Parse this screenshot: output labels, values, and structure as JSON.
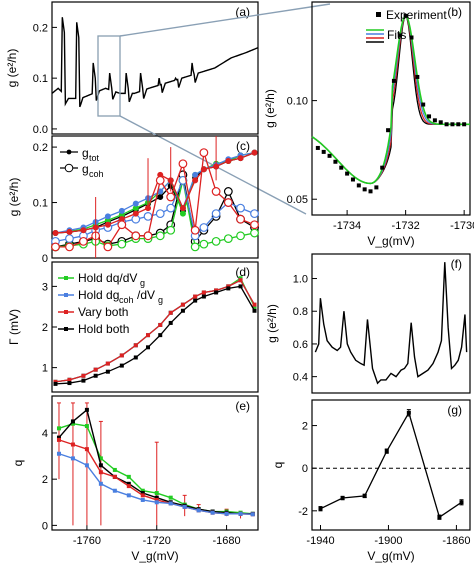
{
  "chart_data": [
    {
      "panel": "a",
      "panel_label": "(a)",
      "type": "line",
      "ylabel": "g (e²/h)",
      "yticks": [
        "0.0",
        "0.1",
        "0.2"
      ],
      "ylim": [
        -0.01,
        0.25
      ],
      "xlim": [
        0,
        1
      ],
      "series": [
        {
          "x": [
            0,
            0.03,
            0.08,
            0.14,
            0.2,
            0.26,
            0.33,
            0.4,
            0.47,
            0.55,
            0.63,
            0.71,
            0.79,
            0.87,
            0.94,
            1.0
          ],
          "y": [
            0.07,
            0.08,
            0.06,
            0.06,
            0.07,
            0.08,
            0.07,
            0.07,
            0.08,
            0.09,
            0.1,
            0.11,
            0.12,
            0.14,
            0.15,
            0.16
          ],
          "peaks": [
            0.05,
            0.12,
            0.2,
            0.28,
            0.36,
            0.43,
            0.52,
            0.6,
            0.68
          ],
          "peak_h": [
            0.22,
            0.21,
            0.13,
            0.11,
            0.11,
            0.11,
            0.1,
            0.1,
            0.13
          ]
        }
      ]
    },
    {
      "panel": "b",
      "panel_label": "(b)",
      "type": "line",
      "xlabel": "V_g(mV)",
      "ylabel": "g (e²/h)",
      "xlim": [
        -1735.2,
        -1729.8
      ],
      "ylim": [
        0.042,
        0.15
      ],
      "xticks": [
        "-1734",
        "-1732",
        "-1730"
      ],
      "xtick_vals": [
        -1734,
        -1732,
        -1730
      ],
      "yticks": [
        "0.05",
        "0.10"
      ],
      "ytick_vals": [
        0.05,
        0.1
      ],
      "legend": [
        "Experiment",
        "Fits"
      ],
      "legend_position": "top-right",
      "colors": {
        "experiment": "#000000",
        "fit_green": "#22cc22",
        "fit_blue": "#4a7fe0",
        "fit_red": "#dd2222",
        "fit_black": "#000000"
      },
      "experiment_x": [
        -1735,
        -1734.8,
        -1734.6,
        -1734.4,
        -1734.2,
        -1734,
        -1733.8,
        -1733.6,
        -1733.4,
        -1733.2,
        -1733,
        -1732.8,
        -1732.6,
        -1732.4,
        -1732.2,
        -1732,
        -1731.8,
        -1731.6,
        -1731.4,
        -1731.2,
        -1731,
        -1730.8,
        -1730.6,
        -1730.4,
        -1730.2,
        -1730
      ],
      "experiment_y": [
        0.076,
        0.074,
        0.072,
        0.069,
        0.066,
        0.063,
        0.06,
        0.057,
        0.055,
        0.054,
        0.056,
        0.066,
        0.085,
        0.11,
        0.133,
        0.143,
        0.132,
        0.112,
        0.098,
        0.092,
        0.09,
        0.089,
        0.088,
        0.088,
        0.088,
        0.088
      ]
    },
    {
      "panel": "c",
      "panel_label": "(c)",
      "type": "line",
      "ylabel": "g (e²/h)",
      "ylim": [
        0,
        0.22
      ],
      "yticks": [
        "0",
        "0.1",
        "0.2"
      ],
      "ytick_vals": [
        0,
        0.1,
        0.2
      ],
      "legend": [
        "g_tot",
        "g_coh"
      ],
      "legend_position": "top-left",
      "x": [
        -1778,
        -1770,
        -1762,
        -1755,
        -1748,
        -1740,
        -1732,
        -1725,
        -1718,
        -1712,
        -1705,
        -1698,
        -1693,
        -1686,
        -1679,
        -1672,
        -1664
      ],
      "series": [
        {
          "name": "g_tot",
          "color": "#000000",
          "values": [
            0.045,
            0.047,
            0.05,
            0.055,
            0.065,
            0.075,
            0.087,
            0.098,
            0.11,
            0.13,
            0.085,
            0.145,
            0.16,
            0.165,
            0.175,
            0.18,
            0.19
          ]
        },
        {
          "name": "g_coh",
          "color": "#000000",
          "hollow": true,
          "values": [
            0.02,
            0.025,
            0.03,
            0.035,
            0.025,
            0.03,
            0.04,
            0.04,
            0.045,
            0.06,
            0.15,
            0.03,
            0.05,
            0.075,
            0.12,
            0.07,
            0.055
          ]
        },
        {
          "name": "green",
          "color": "#22cc22",
          "values": [
            0.045,
            0.048,
            0.052,
            0.06,
            0.068,
            0.078,
            0.09,
            0.1,
            0.12,
            0.14,
            0.08,
            0.15,
            0.16,
            0.17,
            0.175,
            0.185,
            0.19
          ]
        },
        {
          "name": "green_hollow",
          "color": "#22cc22",
          "hollow": true,
          "values": [
            0.02,
            0.022,
            0.025,
            0.03,
            0.022,
            0.025,
            0.035,
            0.035,
            0.04,
            0.05,
            0.14,
            0.02,
            0.025,
            0.03,
            0.035,
            0.04,
            0.045
          ]
        },
        {
          "name": "blue",
          "color": "#4a7fe0",
          "values": [
            0.045,
            0.05,
            0.055,
            0.065,
            0.075,
            0.085,
            0.098,
            0.108,
            0.12,
            0.14,
            0.09,
            0.15,
            0.16,
            0.168,
            0.178,
            0.185,
            0.19
          ]
        },
        {
          "name": "blue_hollow",
          "color": "#4a7fe0",
          "hollow": true,
          "values": [
            0.03,
            0.035,
            0.04,
            0.05,
            0.055,
            0.065,
            0.07,
            0.075,
            0.08,
            0.09,
            0.14,
            0.04,
            0.055,
            0.08,
            0.1,
            0.09,
            0.08
          ]
        },
        {
          "name": "red",
          "color": "#dd2222",
          "values": [
            0.045,
            0.047,
            0.05,
            0.055,
            0.06,
            0.07,
            0.08,
            0.09,
            0.15,
            0.14,
            0.09,
            0.14,
            0.16,
            0.165,
            0.175,
            0.18,
            0.19
          ]
        },
        {
          "name": "red_hollow",
          "color": "#dd2222",
          "hollow": true,
          "values": [
            0.02,
            0.02,
            0.03,
            0.04,
            0.02,
            0.06,
            0.04,
            0.04,
            0.14,
            0.11,
            0.17,
            0.05,
            0.19,
            0.12,
            0.1,
            0.07,
            0.06
          ]
        }
      ]
    },
    {
      "panel": "d",
      "panel_label": "(d)",
      "type": "line",
      "ylabel": "Γ (mV)",
      "ylim": [
        0.4,
        3.6
      ],
      "yticks": [
        "1",
        "2",
        "3"
      ],
      "ytick_vals": [
        1,
        2,
        3
      ],
      "legend": [
        "Hold dq/dV_g",
        "Hold dg_coh/dV_g",
        "Vary both",
        "Hold both"
      ],
      "legend_position": "top-left",
      "x": [
        -1778,
        -1770,
        -1762,
        -1755,
        -1748,
        -1740,
        -1732,
        -1725,
        -1718,
        -1712,
        -1705,
        -1698,
        -1693,
        -1686,
        -1679,
        -1672,
        -1664
      ],
      "series": [
        {
          "name": "Hold dq/dV_g",
          "color": "#22cc22",
          "values": [
            0.65,
            0.7,
            0.8,
            0.95,
            1.1,
            1.3,
            1.55,
            1.8,
            2.05,
            2.35,
            2.55,
            2.75,
            2.85,
            2.9,
            3.0,
            3.2,
            2.5
          ]
        },
        {
          "name": "Hold dg_coh/dV_g",
          "color": "#4a7fe0",
          "values": [
            0.65,
            0.7,
            0.8,
            0.95,
            1.1,
            1.3,
            1.55,
            1.8,
            2.05,
            2.35,
            2.55,
            2.75,
            2.85,
            2.9,
            3.0,
            3.15,
            2.55
          ]
        },
        {
          "name": "Vary both",
          "color": "#dd2222",
          "values": [
            0.65,
            0.7,
            0.8,
            0.95,
            1.1,
            1.3,
            1.55,
            1.8,
            2.05,
            2.35,
            2.55,
            2.75,
            2.85,
            2.9,
            3.0,
            3.15,
            2.55
          ]
        },
        {
          "name": "Hold both",
          "color": "#000000",
          "values": [
            0.6,
            0.62,
            0.68,
            0.8,
            0.9,
            1.05,
            1.25,
            1.5,
            1.8,
            2.1,
            2.4,
            2.65,
            2.75,
            2.85,
            2.95,
            3.0,
            2.4
          ]
        }
      ]
    },
    {
      "panel": "e",
      "panel_label": "(e)",
      "type": "line",
      "xlabel": "V_g(mV)",
      "ylabel": "q",
      "xlim": [
        -1780,
        -1662
      ],
      "ylim": [
        -0.2,
        5.6
      ],
      "xticks": [
        "-1760",
        "-1720",
        "-1680"
      ],
      "xtick_vals": [
        -1760,
        -1720,
        -1680
      ],
      "yticks": [
        "0",
        "2",
        "4"
      ],
      "ytick_vals": [
        0,
        2,
        4
      ],
      "x": [
        -1776,
        -1768,
        -1760,
        -1752,
        -1744,
        -1736,
        -1728,
        -1720,
        -1712,
        -1704,
        -1696,
        -1688,
        -1680,
        -1672,
        -1665
      ],
      "series": [
        {
          "name": "green",
          "color": "#22cc22",
          "values": [
            4.2,
            4.4,
            4.3,
            2.9,
            2.4,
            2.1,
            1.5,
            1.4,
            1.2,
            0.9,
            0.7,
            0.6,
            0.6,
            0.55,
            0.5
          ]
        },
        {
          "name": "black",
          "color": "#000000",
          "values": [
            3.8,
            4.5,
            5.0,
            2.6,
            2.1,
            1.8,
            1.4,
            1.2,
            1.0,
            0.85,
            0.7,
            0.6,
            0.55,
            0.5,
            0.5
          ]
        },
        {
          "name": "red",
          "color": "#dd2222",
          "values": [
            3.7,
            3.5,
            3.3,
            2.3,
            2.1,
            1.7,
            1.3,
            1.1,
            0.95,
            0.8,
            0.65,
            0.55,
            0.5,
            0.5,
            0.48
          ]
        },
        {
          "name": "blue",
          "color": "#4a7fe0",
          "values": [
            3.1,
            2.9,
            2.6,
            1.8,
            1.5,
            1.3,
            1.1,
            1.0,
            0.95,
            0.8,
            0.65,
            0.55,
            0.5,
            0.5,
            0.48
          ]
        }
      ],
      "errorbars": [
        [
          -1776,
          2.0,
          5.3
        ],
        [
          -1768,
          0.0,
          5.3
        ],
        [
          -1760,
          0.0,
          5.3
        ],
        [
          -1752,
          0.0,
          4.5
        ],
        [
          -1720,
          0.0,
          3.6
        ],
        [
          -1704,
          0.4,
          1.3
        ],
        [
          -1696,
          0.6,
          0.9
        ],
        [
          -1680,
          0.4,
          0.7
        ],
        [
          -1672,
          0.3,
          0.6
        ]
      ]
    },
    {
      "panel": "f",
      "panel_label": "(f)",
      "type": "line",
      "ylabel": "g (e²/h)",
      "ylim": [
        0.3,
        1.15
      ],
      "yticks": [
        "0.4",
        "0.6",
        "0.8",
        "1.0"
      ],
      "ytick_vals": [
        0.4,
        0.6,
        0.8,
        1.0
      ],
      "x": [
        -1945,
        -1943,
        -1942,
        -1940,
        -1938,
        -1935,
        -1932,
        -1930,
        -1928,
        -1926,
        -1924,
        -1921,
        -1918,
        -1916,
        -1914,
        -1911,
        -1908,
        -1906,
        -1903,
        -1900,
        -1897,
        -1894,
        -1892,
        -1890,
        -1888,
        -1886,
        -1884,
        -1881,
        -1878,
        -1875,
        -1872,
        -1870,
        -1868,
        -1866,
        -1864,
        -1862,
        -1860,
        -1858,
        -1856,
        -1855
      ],
      "values": [
        0.55,
        0.6,
        0.88,
        0.72,
        0.62,
        0.58,
        0.56,
        0.58,
        0.8,
        0.6,
        0.55,
        0.5,
        0.48,
        0.47,
        0.75,
        0.45,
        0.36,
        0.38,
        0.38,
        0.42,
        0.4,
        0.44,
        0.45,
        0.48,
        0.73,
        0.52,
        0.4,
        0.42,
        0.44,
        0.48,
        0.55,
        0.62,
        1.1,
        0.7,
        0.45,
        0.47,
        0.5,
        0.58,
        0.78,
        0.55
      ]
    },
    {
      "panel": "g",
      "panel_label": "(g)",
      "type": "line",
      "xlabel": "V_g(mV)",
      "ylabel": "q",
      "xlim": [
        -1945,
        -1852
      ],
      "ylim": [
        -2.9,
        3.2
      ],
      "xticks": [
        "-1940",
        "-1900",
        "-1860"
      ],
      "xtick_vals": [
        -1940,
        -1900,
        -1860
      ],
      "yticks": [
        "-2",
        "0",
        "2"
      ],
      "ytick_vals": [
        -2,
        0,
        2
      ],
      "x": [
        -1940,
        -1927,
        -1914,
        -1901,
        -1888,
        -1870,
        -1857
      ],
      "values": [
        -1.9,
        -1.4,
        -1.3,
        0.8,
        2.6,
        -2.3,
        -1.6
      ],
      "errors": [
        0.1,
        0.08,
        0.08,
        0.1,
        0.15,
        0.1,
        0.12
      ]
    }
  ]
}
